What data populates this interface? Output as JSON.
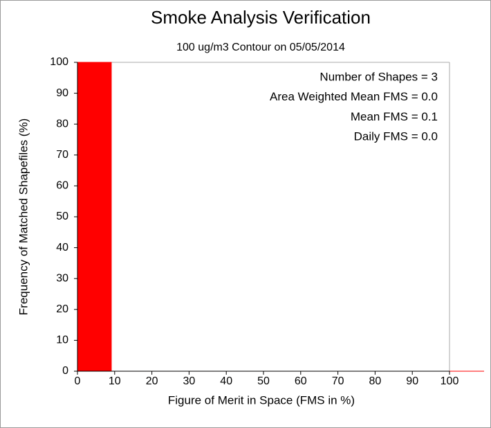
{
  "chart_data": {
    "type": "histogram",
    "title": "Smoke Analysis Verification",
    "subtitle": "100 ug/m3 Contour on 05/05/2014",
    "xlabel": "Figure of Merit in Space (FMS in %)",
    "ylabel": "Frequency of Matched Shapefiles (%)",
    "annotations": [
      "Number of Shapes = 3",
      "Area Weighted Mean FMS = 0.0",
      "Mean FMS = 0.1",
      "Daily FMS = 0.0"
    ],
    "bins": [
      0,
      9.1,
      18.2,
      27.3,
      36.4,
      45.5,
      54.6,
      63.7,
      72.8,
      81.9,
      91,
      100.1,
      109.2
    ],
    "values": [
      100,
      0,
      0,
      0,
      0,
      0,
      0,
      0,
      0,
      0,
      0,
      0
    ],
    "color": "#ff0000",
    "xlim": [
      0,
      100
    ],
    "ylim": [
      0,
      100
    ],
    "xticks": [
      0,
      10,
      20,
      30,
      40,
      50,
      60,
      70,
      80,
      90,
      100
    ],
    "yticks": [
      0,
      10,
      20,
      30,
      40,
      50,
      60,
      70,
      80,
      90,
      100
    ]
  }
}
